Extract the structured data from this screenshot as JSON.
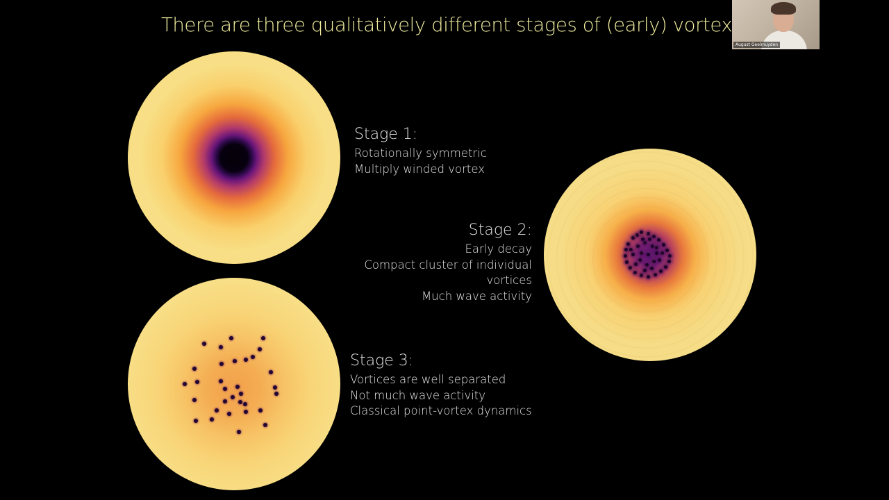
{
  "slide": {
    "title": "There are three qualitatively different stages of (early) vortex decay"
  },
  "stages": [
    {
      "heading": "Stage 1:",
      "lines": [
        "Rotationally symmetric",
        "Multiply winded vortex"
      ]
    },
    {
      "heading": "Stage 2:",
      "lines": [
        "Early decay",
        "Compact cluster of individual",
        "vortices",
        "Much wave activity"
      ]
    },
    {
      "heading": "Stage 3:",
      "lines": [
        "Vortices are well separated",
        "Not much wave activity",
        "Classical point-vortex dynamics"
      ]
    }
  ],
  "webcam": {
    "participant_name": "August Geelmuyden"
  },
  "colors": {
    "title": "#f1ee9e",
    "body_text": "#e4e4e4",
    "background": "#000000"
  }
}
